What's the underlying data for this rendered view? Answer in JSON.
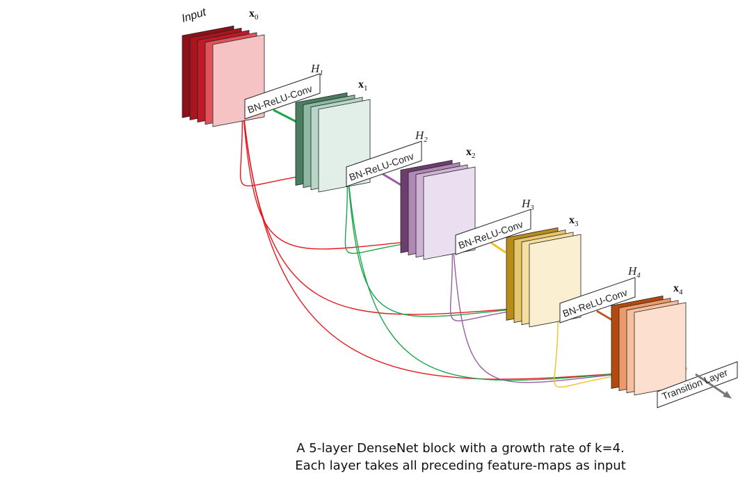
{
  "input_label": "Input",
  "layers": [
    {
      "x_label": "x",
      "x_sub": "0",
      "colors": [
        "#8e1019",
        "#a8151f",
        "#c01a28",
        "#e0535a",
        "#f6c3c5"
      ]
    },
    {
      "h_label": "H",
      "h_sub": "1",
      "op_label": "BN-ReLU-Conv",
      "x_label": "x",
      "x_sub": "1",
      "colors": [
        "#4a7c62",
        "#8db8a2",
        "#b8d6c7",
        "#e2eee8"
      ]
    },
    {
      "h_label": "H",
      "h_sub": "2",
      "op_label": "BN-ReLU-Conv",
      "x_label": "x",
      "x_sub": "2",
      "colors": [
        "#6e3d70",
        "#b088b4",
        "#cfb3d3",
        "#eadff0"
      ]
    },
    {
      "h_label": "H",
      "h_sub": "3",
      "op_label": "BN-ReLU-Conv",
      "x_label": "x",
      "x_sub": "3",
      "colors": [
        "#b88c1a",
        "#e8c76a",
        "#f4dea0",
        "#fbefd2"
      ]
    },
    {
      "h_label": "H",
      "h_sub": "4",
      "op_label": "BN-ReLU-Conv",
      "x_label": "x",
      "x_sub": "4",
      "colors": [
        "#b24a10",
        "#ec9a6a",
        "#f6c0a0",
        "#fcdfcf"
      ]
    }
  ],
  "transition_label": "Transition Layer",
  "connection_colors": [
    "#e8161c",
    "#19a64a",
    "#9b5aa5",
    "#efc21e"
  ],
  "caption": {
    "line1": "A 5-layer DenseNet block with a growth rate of k=4.",
    "line2": "Each layer takes all preceding feature-maps as input"
  }
}
